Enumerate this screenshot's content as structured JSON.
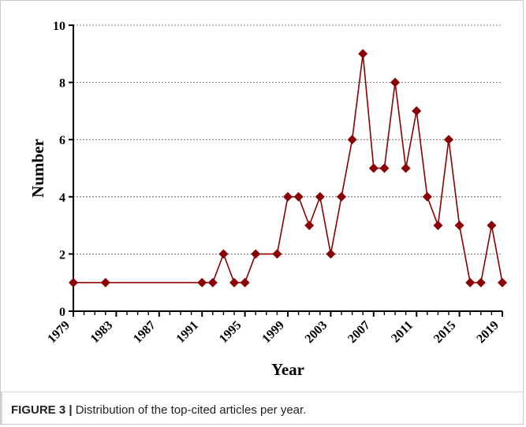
{
  "caption": {
    "label": "FIGURE 3 |",
    "text": " Distribution of the top-cited articles per year."
  },
  "chart_data": {
    "type": "line",
    "title": "",
    "xlabel": "Year",
    "ylabel": "Number",
    "xlim": [
      1979,
      2019
    ],
    "ylim": [
      0,
      10
    ],
    "x_ticks": [
      1979,
      1983,
      1987,
      1991,
      1995,
      1999,
      2003,
      2007,
      2011,
      2015,
      2019
    ],
    "y_ticks": [
      0,
      2,
      4,
      6,
      8,
      10
    ],
    "grid": "horizontal dashed",
    "series": [
      {
        "color": "#8b0000",
        "marker": "diamond",
        "points": [
          [
            1979,
            1
          ],
          [
            1982,
            1
          ],
          [
            1991,
            1
          ],
          [
            1992,
            1
          ],
          [
            1993,
            2
          ],
          [
            1994,
            1
          ],
          [
            1995,
            1
          ],
          [
            1996,
            2
          ],
          [
            1998,
            2
          ],
          [
            1999,
            4
          ],
          [
            2000,
            4
          ],
          [
            2001,
            3
          ],
          [
            2002,
            4
          ],
          [
            2003,
            2
          ],
          [
            2004,
            4
          ],
          [
            2005,
            6
          ],
          [
            2006,
            9
          ],
          [
            2007,
            5
          ],
          [
            2008,
            5
          ],
          [
            2009,
            8
          ],
          [
            2010,
            5
          ],
          [
            2011,
            7
          ],
          [
            2012,
            4
          ],
          [
            2013,
            3
          ],
          [
            2014,
            6
          ],
          [
            2015,
            3
          ],
          [
            2016,
            1
          ],
          [
            2017,
            1
          ],
          [
            2018,
            3
          ],
          [
            2019,
            1
          ]
        ]
      }
    ]
  }
}
